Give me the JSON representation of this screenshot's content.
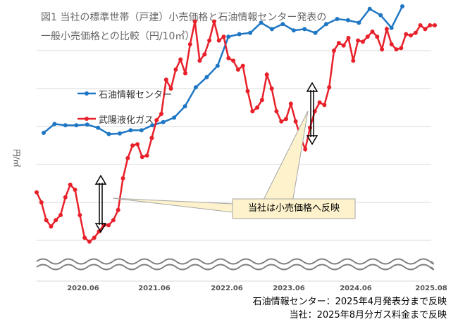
{
  "chart_data": {
    "type": "line",
    "title": "図1 当社の標準世帯（戸建）小売価格と石油情報センター発表の",
    "subtitle": "一般小売価格との比較（円/10㎥）",
    "ylabel": "円/㎥",
    "xlabel": "",
    "x_tick_labels": [
      "2020.06",
      "2021.06",
      "2022.06",
      "2023.06",
      "2024.06",
      "2025.08"
    ],
    "grid": true,
    "legend_position": "upper-left",
    "series": [
      {
        "name": "石油情報センター",
        "color": "#1f77c4",
        "values": [
          2.5,
          3.2,
          3.1,
          3.1,
          3.15,
          2.9,
          2.4,
          2.45,
          2.7,
          2.7,
          3.1,
          3.35,
          3.7,
          4.6,
          6.1,
          6.9,
          7.8,
          10.1,
          10.3,
          10.4,
          11.2,
          10.7,
          11.1,
          10.6,
          10.7,
          10.4,
          11.1,
          11.5,
          11.4,
          11.2,
          12.3,
          11.8,
          10.8,
          12.5
        ]
      },
      {
        "name": "武陽液化ガス",
        "color": "#e8202a",
        "values": [
          -2.2,
          -3.0,
          -4.4,
          -4.9,
          -4.4,
          -4.0,
          -2.6,
          -1.6,
          -2.0,
          -4.0,
          -5.8,
          -6.1,
          -5.8,
          -5.3,
          -4.8,
          -4.8,
          -4.4,
          -3.6,
          -1.1,
          0.5,
          1.5,
          1.6,
          0.6,
          0.7,
          2.1,
          3.5,
          4.0,
          6.7,
          6.0,
          7.5,
          8.3,
          7.2,
          9.5,
          11.3,
          8.2,
          8.7,
          9.8,
          11.3,
          9.8,
          10.1,
          8.4,
          8.2,
          7.5,
          7.8,
          5.8,
          4.2,
          4.5,
          5.1,
          7.1,
          6.0,
          4.2,
          3.4,
          3.6,
          4.8,
          3.4,
          2.2,
          1.2,
          2.9,
          4.2,
          4.9,
          4.7,
          6.1,
          9.0,
          9.6,
          9.4,
          10.0,
          8.2,
          9.8,
          9.7,
          10.1,
          10.5,
          10.1,
          9.1,
          10.7,
          9.5,
          9.1,
          9.2,
          10.3,
          10.2,
          10.4,
          11.0,
          10.7,
          11.0,
          11.0
        ]
      }
    ],
    "annotations": [
      {
        "text": "当社は小売価格へ反映"
      }
    ],
    "notes": [
      "石油情報センター：2025年4月発表分まで反映",
      "当社：2025年8月分ガス料金まで反映"
    ]
  }
}
